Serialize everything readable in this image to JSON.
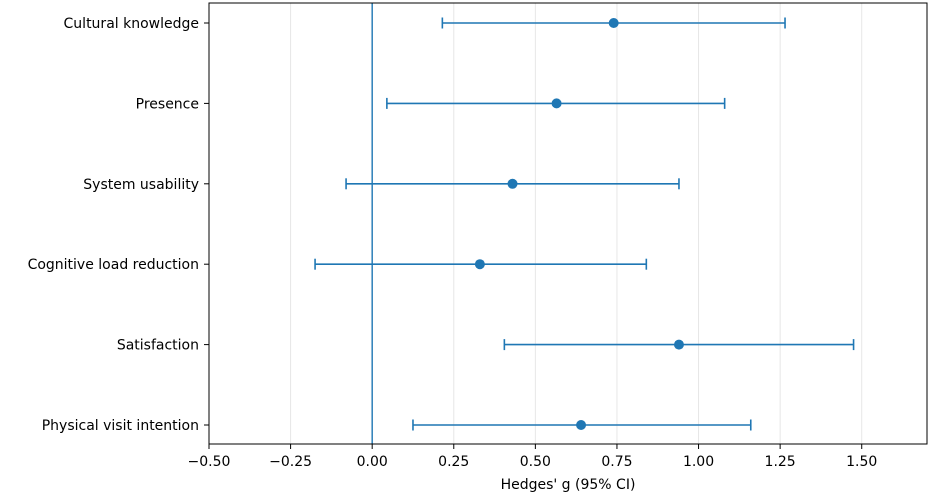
{
  "chart_data": {
    "type": "scatter",
    "subtype": "forest-plot",
    "title": "",
    "xlabel": "Hedges' g (95% CI)",
    "ylabel": "",
    "xlim": [
      -0.5,
      1.7
    ],
    "x_ticks": [
      -0.5,
      -0.25,
      0.0,
      0.25,
      0.5,
      0.75,
      1.0,
      1.25,
      1.5
    ],
    "x_tick_labels": [
      "−0.50",
      "−0.25",
      "0.00",
      "0.25",
      "0.50",
      "0.75",
      "1.00",
      "1.25",
      "1.50"
    ],
    "reference_line": 0.0,
    "grid": "vertical",
    "color": "#1f77b4",
    "rows": [
      {
        "label": "Cultural knowledge",
        "estimate": 0.74,
        "ci_low": 0.215,
        "ci_high": 1.265
      },
      {
        "label": "Presence",
        "estimate": 0.565,
        "ci_low": 0.045,
        "ci_high": 1.08
      },
      {
        "label": "System usability",
        "estimate": 0.43,
        "ci_low": -0.08,
        "ci_high": 0.94
      },
      {
        "label": "Cognitive load reduction",
        "estimate": 0.33,
        "ci_low": -0.175,
        "ci_high": 0.84
      },
      {
        "label": "Satisfaction",
        "estimate": 0.94,
        "ci_low": 0.405,
        "ci_high": 1.475
      },
      {
        "label": "Physical visit intention",
        "estimate": 0.64,
        "ci_low": 0.125,
        "ci_high": 1.16
      }
    ]
  }
}
